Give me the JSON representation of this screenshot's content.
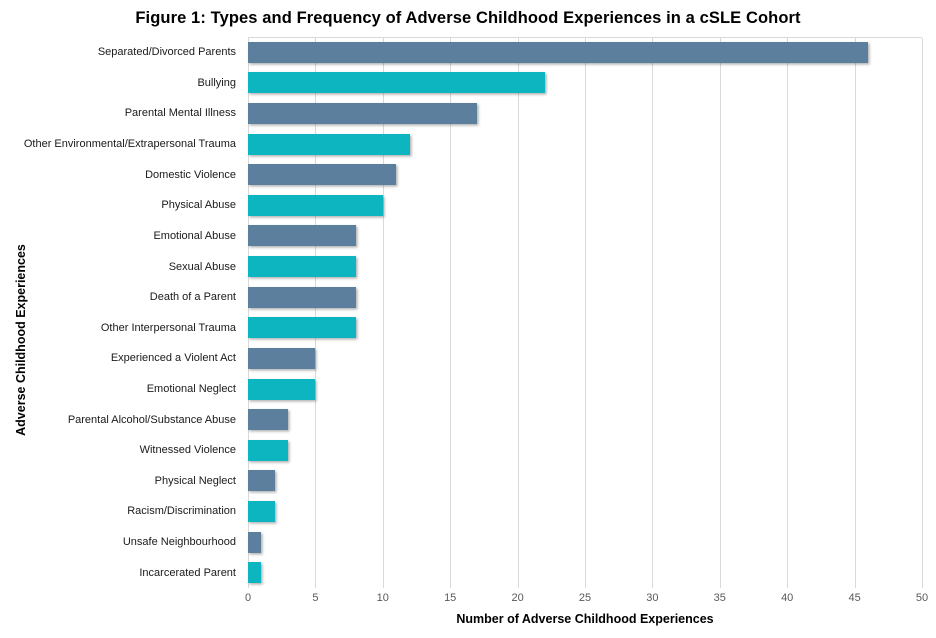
{
  "chart_data": {
    "type": "bar",
    "orientation": "horizontal",
    "title": "Figure 1: Types and Frequency of Adverse Childhood Experiences in a cSLE Cohort",
    "xlabel": "Number of Adverse Childhood Experiences",
    "ylabel": "Adverse Childhood Experiences",
    "xlim": [
      0,
      50
    ],
    "xticks": [
      0,
      5,
      10,
      15,
      20,
      25,
      30,
      35,
      40,
      45,
      50
    ],
    "grid": "vertical",
    "legend": false,
    "categories": [
      "Separated/Divorced Parents",
      "Bullying",
      "Parental Mental Illness",
      "Other Environmental/Extrapersonal Trauma",
      "Domestic Violence",
      "Physical Abuse",
      "Emotional Abuse",
      "Sexual Abuse",
      "Death of a Parent",
      "Other Interpersonal Trauma",
      "Experienced a Violent Act",
      "Emotional Neglect",
      "Parental Alcohol/Substance Abuse",
      "Witnessed Violence",
      "Physical Neglect",
      "Racism/Discrimination",
      "Unsafe Neighbourhood",
      "Incarcerated Parent"
    ],
    "values": [
      46,
      22,
      17,
      12,
      11,
      10,
      8,
      8,
      8,
      8,
      5,
      5,
      3,
      3,
      2,
      2,
      1,
      1
    ]
  },
  "colors": {
    "bar_odd_rows": "#5B7F9D",
    "bar_even_rows": "#0CB5BF",
    "gridline": "#D9D9D9",
    "tick_text": "#595959",
    "title_text": "#000000",
    "category_text": "#1A1A1A"
  }
}
